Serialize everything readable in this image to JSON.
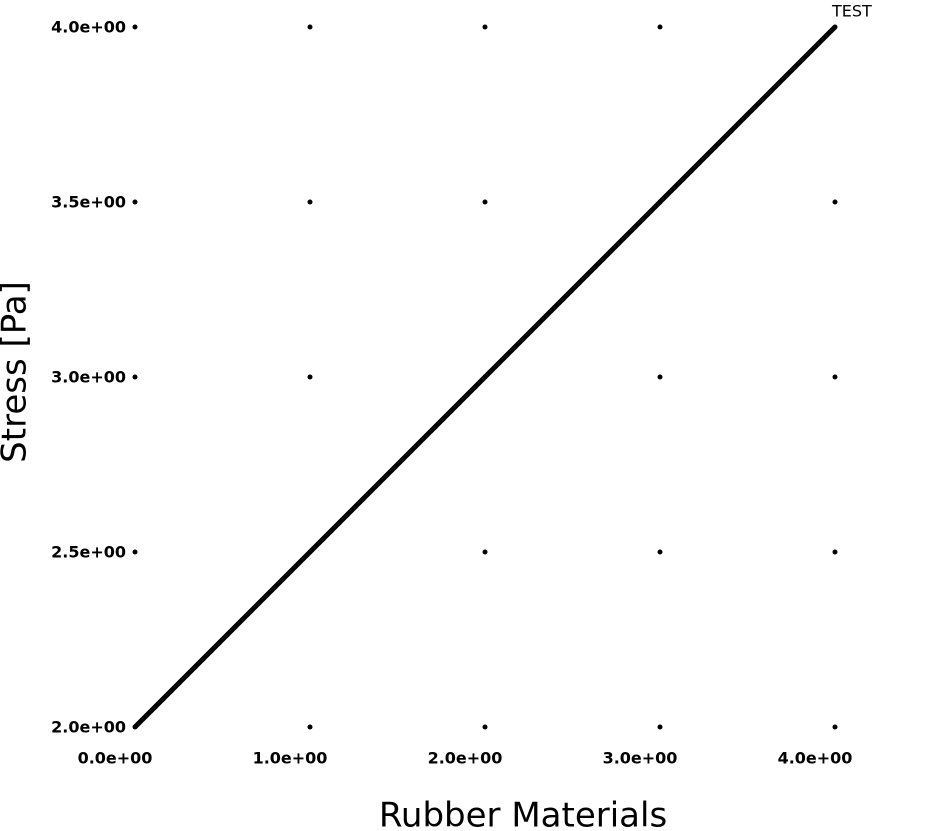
{
  "chart_data": {
    "type": "line",
    "x_label": "Rubber Materials",
    "y_label": "Stress [Pa]",
    "x": [
      0,
      1,
      2,
      3,
      4
    ],
    "series": [
      {
        "color": "#000000",
        "values": [
          2,
          2.5,
          3,
          3.5,
          4
        ]
      }
    ],
    "xlim": [
      0,
      4
    ],
    "ylim": [
      2,
      4
    ],
    "xticks": [
      {
        "value": 0,
        "label": "0.0e+00"
      },
      {
        "value": 1,
        "label": "1.0e+00"
      },
      {
        "value": 2,
        "label": "2.0e+00"
      },
      {
        "value": 3,
        "label": "3.0e+00"
      },
      {
        "value": 4,
        "label": "4.0e+00"
      }
    ],
    "yticks": [
      {
        "value": 2,
        "label": "2.0e+00"
      },
      {
        "value": 2.5,
        "label": "2.5e+00"
      },
      {
        "value": 3,
        "label": "3.0e+00"
      },
      {
        "value": 3.5,
        "label": "3.5e+00"
      },
      {
        "value": 4,
        "label": "4.0e+00"
      }
    ],
    "grid": true,
    "annotations": [
      {
        "text": "TEST",
        "x": 4,
        "y": 4
      }
    ]
  }
}
